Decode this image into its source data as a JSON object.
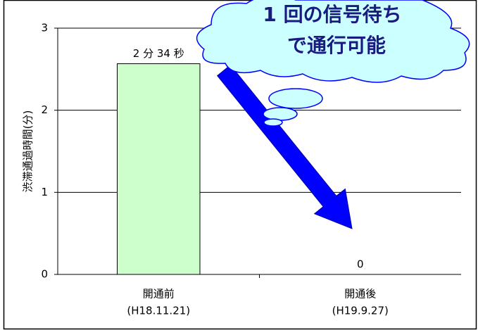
{
  "chart_data": {
    "type": "bar",
    "y_label": "渋滞通過時間(分)",
    "categories": [
      "開通前",
      "開通後"
    ],
    "category_sublabels": [
      "(H18.11.21)",
      "(H19.9.27)"
    ],
    "values": [
      2.5667,
      0
    ],
    "value_labels": [
      "2 分 34 秒",
      "0"
    ],
    "color": "#ccffcc",
    "ylim": [
      0,
      3
    ],
    "yticks": [
      0,
      1,
      2,
      3
    ],
    "grid": true,
    "annotation": [
      "1 回の信号待ち",
      "で通行可能"
    ]
  }
}
